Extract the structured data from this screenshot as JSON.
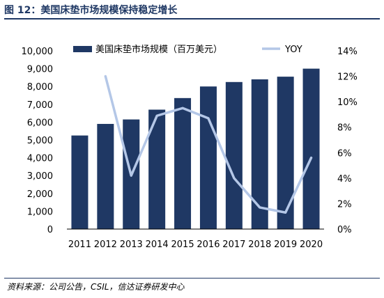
{
  "figure": {
    "title": "图 12：美国床垫市场规模保持稳定增长",
    "source": "资料来源：公司公告，CSIL，信达证券研发中心"
  },
  "colors": {
    "bar": "#1f3864",
    "line": "#b4c7e7",
    "rule": "#1f3864"
  },
  "chart_data": {
    "type": "bar",
    "categories": [
      "2011",
      "2012",
      "2013",
      "2014",
      "2015",
      "2016",
      "2017",
      "2018",
      "2019",
      "2020"
    ],
    "series": [
      {
        "name": "美国床垫市场规模（百万美元）",
        "type": "bar",
        "axis": "left",
        "values": [
          5250,
          5900,
          6150,
          6700,
          7350,
          8000,
          8250,
          8400,
          8550,
          9000
        ]
      },
      {
        "name": "YOY",
        "type": "line",
        "axis": "right",
        "values": [
          null,
          0.12,
          0.042,
          0.089,
          0.095,
          0.087,
          0.04,
          0.017,
          0.013,
          0.056
        ]
      }
    ],
    "y_left": {
      "min": 0,
      "max": 10000,
      "step": 1000,
      "tick_labels": [
        "0",
        "1,000",
        "2,000",
        "3,000",
        "4,000",
        "5,000",
        "6,000",
        "7,000",
        "8,000",
        "9,000",
        "10,000"
      ]
    },
    "y_right": {
      "min": 0,
      "max": 0.14,
      "step": 0.02,
      "tick_labels": [
        "0%",
        "2%",
        "4%",
        "6%",
        "8%",
        "10%",
        "12%",
        "14%"
      ]
    },
    "grid": false,
    "legend": "top"
  }
}
